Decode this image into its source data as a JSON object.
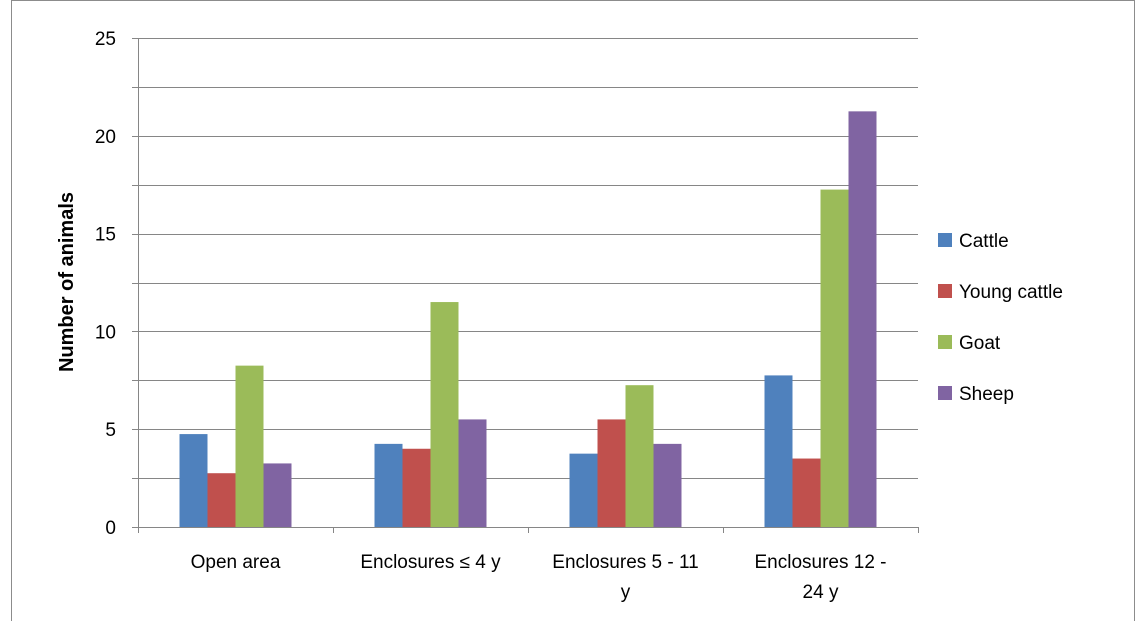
{
  "chart_data": {
    "type": "bar",
    "title": "",
    "xlabel": "",
    "ylabel": "Number of animals",
    "ylim": [
      0,
      25
    ],
    "yticks": [
      0,
      5,
      10,
      15,
      20,
      25
    ],
    "grid": true,
    "legend_position": "right",
    "categories": [
      [
        "Open area"
      ],
      [
        "Enclosures ≤ 4 y"
      ],
      [
        "Enclosures 5 - 11",
        "y"
      ],
      [
        "Enclosures 12 -",
        "24 y"
      ]
    ],
    "series": [
      {
        "name": "Cattle",
        "color": "#4f81bd",
        "values": [
          4.75,
          4.25,
          3.75,
          7.75
        ]
      },
      {
        "name": "Young cattle",
        "color": "#c0504d",
        "values": [
          2.75,
          4.0,
          5.5,
          3.5
        ]
      },
      {
        "name": "Goat",
        "color": "#9bbb59",
        "values": [
          8.25,
          11.5,
          7.25,
          17.25
        ]
      },
      {
        "name": "Sheep",
        "color": "#8064a2",
        "values": [
          3.25,
          5.5,
          4.25,
          21.25
        ]
      }
    ]
  }
}
